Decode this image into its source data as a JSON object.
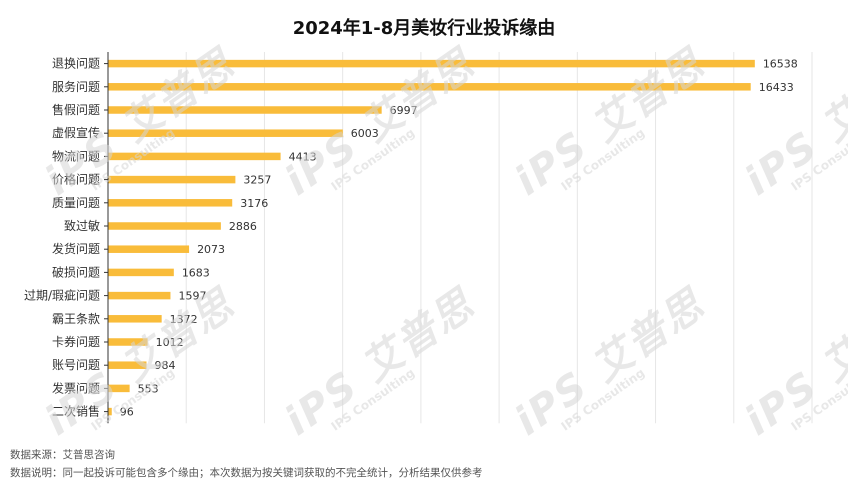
{
  "chart_data": {
    "type": "bar",
    "orientation": "horizontal",
    "title": "2024年1-8月美妆行业投诉缘由",
    "categories": [
      "退换问题",
      "服务问题",
      "售假问题",
      "虚假宣传",
      "物流问题",
      "价格问题",
      "质量问题",
      "致过敏",
      "发货问题",
      "破损问题",
      "过期/瑕疵问题",
      "霸王条款",
      "卡券问题",
      "账号问题",
      "发票问题",
      "二次销售"
    ],
    "values": [
      16538,
      16433,
      6997,
      6003,
      4413,
      3257,
      3176,
      2886,
      2073,
      1683,
      1597,
      1372,
      1012,
      984,
      553,
      96
    ],
    "xlim": [
      0,
      18000
    ],
    "grid": true,
    "bar_color": "#F9BC3A",
    "axis_color": "#333333",
    "grid_color": "#e6e6e6"
  },
  "footer": {
    "source": "数据来源：艾普思咨询",
    "note": "数据说明：同一起投诉可能包含多个缘由；本次数据为按关键词获取的不完全统计，分析结果仅供参考"
  },
  "watermark": {
    "text": "iPS 艾普思",
    "subtext": "IPS Consulting"
  }
}
